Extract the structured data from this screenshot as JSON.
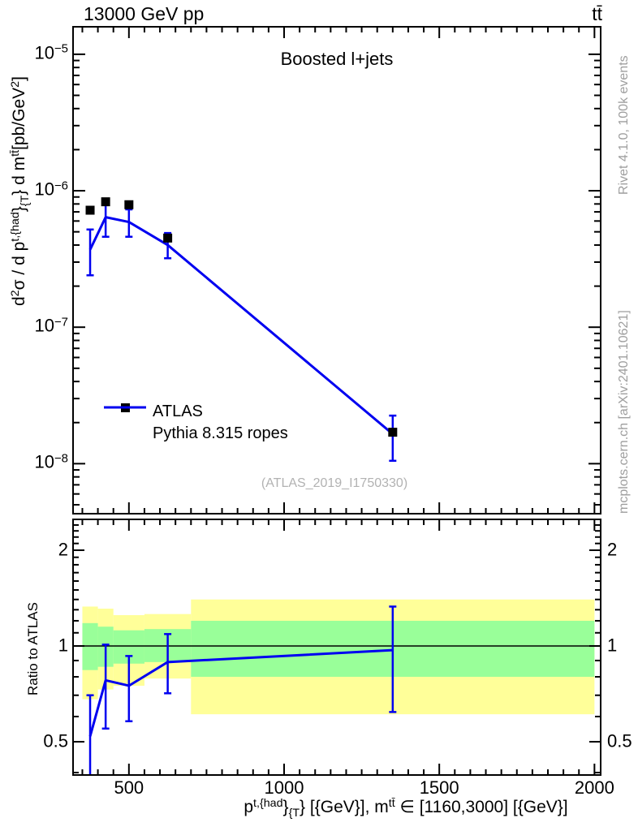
{
  "header": {
    "left": "13000 GeV pp",
    "right": "tt̄"
  },
  "plot": {
    "title": "Boosted l+jets",
    "watermark": "(ATLAS_2019_I1750330)",
    "side_top": "Rivet 4.1.0,  100k events",
    "side_bottom": "mcplots.cern.ch [arXiv:2401.10621]",
    "ratio_label": "Ratio to ATLAS"
  },
  "chart_data": {
    "type": "line",
    "title": "Boosted l+jets",
    "xlabel_rich": [
      {
        "s": "n",
        "t": "p"
      },
      {
        "s": "sup",
        "t": "t,{had"
      },
      {
        "s": "n",
        "t": "}"
      },
      {
        "s": "sub",
        "t": "{T"
      },
      {
        "s": "n",
        "t": "} [{GeV}], m"
      },
      {
        "s": "sup",
        "t": "tt̄"
      },
      {
        "s": "n",
        "t": " ∈ [1160,3000] [{GeV}]"
      }
    ],
    "ylabel_rich": [
      {
        "s": "n",
        "t": "d"
      },
      {
        "s": "sup",
        "t": "2"
      },
      {
        "s": "n",
        "t": "σ /  d p"
      },
      {
        "s": "sup",
        "t": "t,{had"
      },
      {
        "s": "n",
        "t": "}"
      },
      {
        "s": "sub",
        "t": "{T"
      },
      {
        "s": "n",
        "t": "} d m"
      },
      {
        "s": "sup",
        "t": "tt̄"
      },
      {
        "s": "n",
        "t": "[pb/GeV"
      },
      {
        "s": "sup",
        "t": "2"
      },
      {
        "s": "n",
        "t": "]"
      }
    ],
    "xlim": [
      320,
      2020
    ],
    "x_major_ticks": [
      500,
      1000,
      1500,
      2000
    ],
    "x_minor_step": 50,
    "x_minor_start": 350,
    "x_minor_end": 2000,
    "main_ylim": [
      4.3e-09,
      1.59e-05
    ],
    "main_ytick_exponents": [
      -5,
      -6,
      -7,
      -8
    ],
    "ratio_ylim": [
      0.393,
      2.5
    ],
    "ratio_yticks": [
      2,
      1,
      0.5
    ],
    "ratio_minor": {
      "from": 0.4,
      "to": 2.5,
      "step": 0.1
    },
    "grid": false,
    "legend_position": "inside-left",
    "x": [
      375,
      425,
      500,
      625,
      1350
    ],
    "bin_edges": [
      350,
      400,
      450,
      550,
      700,
      2000
    ],
    "series": [
      {
        "name": "ATLAS",
        "style": "marker",
        "marker": "square",
        "color": "#000000",
        "y": [
          7.2e-07,
          8.3e-07,
          7.9e-07,
          4.5e-07,
          1.7e-08
        ]
      },
      {
        "name": "Pythia 8.315 ropes",
        "style": "line",
        "color": "#0000f0",
        "y": [
          3.7e-07,
          6.4e-07,
          5.9e-07,
          4e-07,
          1.65e-08
        ],
        "y_lo": [
          2.4e-07,
          4.6e-07,
          4.6e-07,
          3.2e-07,
          1.05e-08
        ],
        "y_hi": [
          5.2e-07,
          8.4e-07,
          7.3e-07,
          4.9e-07,
          2.25e-08
        ]
      }
    ],
    "ratio": {
      "y": [
        0.52,
        0.78,
        0.75,
        0.89,
        0.97
      ],
      "y_lo": [
        0.33,
        0.55,
        0.58,
        0.71,
        0.62
      ],
      "y_hi": [
        0.7,
        1.01,
        0.93,
        1.09,
        1.33
      ]
    },
    "bands": {
      "yellow_color": "#ffff99",
      "green_color": "#99ff99",
      "yellow": [
        [
          0.68,
          1.33
        ],
        [
          0.73,
          1.31
        ],
        [
          0.75,
          1.25
        ],
        [
          0.79,
          1.26
        ],
        [
          0.61,
          1.4
        ]
      ],
      "green": [
        [
          0.84,
          1.18
        ],
        [
          0.86,
          1.15
        ],
        [
          0.88,
          1.12
        ],
        [
          0.89,
          1.13
        ],
        [
          0.8,
          1.2
        ]
      ]
    },
    "frame_color": "#000000"
  }
}
